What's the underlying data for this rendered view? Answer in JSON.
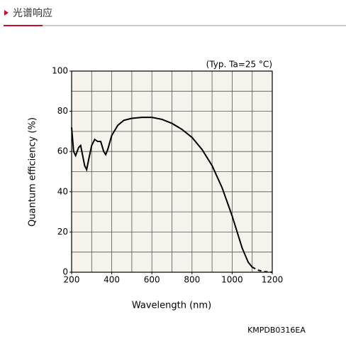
{
  "header": {
    "title": "光谱响应"
  },
  "chart_data": {
    "type": "line",
    "annotation": "(Typ. Ta=25 °C)",
    "xlabel": "Wavelength (nm)",
    "ylabel": "Quantum efficiency (%)",
    "caption": "KMPDB0316EA",
    "xlim": [
      200,
      1200
    ],
    "ylim": [
      0,
      100
    ],
    "xticks": [
      200,
      400,
      600,
      800,
      1000,
      1200
    ],
    "yticks": [
      0,
      20,
      40,
      60,
      80,
      100
    ],
    "x_gridlines": [
      300,
      400,
      500,
      600,
      700,
      800,
      900,
      1000,
      1100
    ],
    "y_gridlines": [
      10,
      20,
      30,
      40,
      50,
      60,
      70,
      80,
      90
    ],
    "grid": true,
    "background": "#f6f3ec",
    "series": [
      {
        "color": "#000000",
        "line_style": "solid",
        "x": [
          200,
          210,
          220,
          235,
          245,
          255,
          265,
          275,
          285,
          300,
          315,
          330,
          345,
          360,
          370,
          380,
          400,
          430,
          460,
          500,
          550,
          600,
          650,
          700,
          750,
          800,
          850,
          900,
          950,
          1000,
          1050,
          1080,
          1100
        ],
        "values": [
          72,
          60,
          58,
          62,
          63,
          58,
          53,
          51,
          56,
          63,
          66,
          65,
          65,
          60,
          58.5,
          61,
          68,
          73,
          75.5,
          76.5,
          77,
          77,
          76,
          74,
          71,
          67,
          61,
          53,
          42,
          28,
          12,
          5,
          2.5
        ]
      },
      {
        "color": "#000000",
        "line_style": "dashed",
        "x": [
          1100,
          1130,
          1160,
          1200
        ],
        "values": [
          2.5,
          1,
          0.3,
          0
        ]
      }
    ]
  }
}
